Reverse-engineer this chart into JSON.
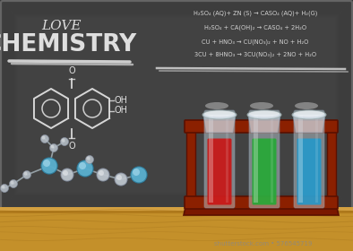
{
  "bg_color": "#3a3a3a",
  "board_color": "#404040",
  "wood_top": "#c4902a",
  "wood_mid": "#b07820",
  "wood_dark": "#8a5c10",
  "title_love": "LOVE",
  "title_chem": "CHEMISTRY",
  "formulas": [
    "H₂SO₄ (AQ)+ ZN (S) → CASO₄ (AQ)+ H₂(G)",
    "H₂SO₄ + CA(OH)₂ → CASO₄ + 2H₂O",
    "CU + HNO₃ → CU(NO₃)₂ + NO + H₂O",
    "3CU + 8HNO₃ → 3CU(NO₃)₂ + 2NO + H₂O"
  ],
  "chalk_color": "#e8e8e8",
  "tube_colors": [
    "#cc1111",
    "#22aa33",
    "#2299cc"
  ],
  "tube_rack_color": "#8b2000",
  "tube_rack_dark": "#5a1000",
  "shutterstock_text": "shutterstock.com • 576545719"
}
